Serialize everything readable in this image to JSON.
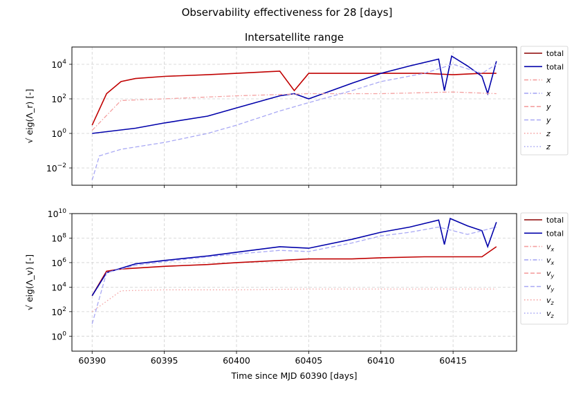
{
  "figure_title": "Observability effectiveness for 28 [days]",
  "chart_data": [
    {
      "type": "line",
      "title": "Intersatellite range",
      "xlabel": "",
      "ylabel_math": "√ eig(Λ_r) [-]",
      "yscale": "log",
      "ylim": [
        0.001,
        100000
      ],
      "xlim": [
        60388.6,
        60419.4
      ],
      "x_ticks": [
        60390,
        60395,
        60400,
        60405,
        60410,
        60415
      ],
      "y_ticks": [
        0.01,
        1,
        100,
        10000
      ],
      "y_tick_labels": [
        {
          "base": "10",
          "exp": "−2"
        },
        {
          "base": "10",
          "exp": "0"
        },
        {
          "base": "10",
          "exp": "2"
        },
        {
          "base": "10",
          "exp": "4"
        }
      ],
      "grid": true,
      "legend_placement": "outside-right",
      "legend": [
        {
          "label": "total",
          "color": "#8b0000",
          "dash": "solid"
        },
        {
          "label": "total",
          "color": "#0000aa",
          "dash": "solid"
        },
        {
          "label": "x",
          "color": "#f4a0a0",
          "dash": "dashdot"
        },
        {
          "label": "x",
          "color": "#a8a8f4",
          "dash": "dashdot"
        },
        {
          "label": "y",
          "color": "#f4a0a0",
          "dash": "dashed"
        },
        {
          "label": "y",
          "color": "#a8a8f4",
          "dash": "dashed"
        },
        {
          "label": "z",
          "color": "#f4a0a0",
          "dash": "dotted"
        },
        {
          "label": "z",
          "color": "#a8a8f4",
          "dash": "dotted"
        }
      ],
      "series": [
        {
          "color": "#c00000",
          "dash": "solid",
          "x": [
            60390,
            60391,
            60392,
            60393,
            60395,
            60398,
            60400,
            60403,
            60404,
            60405,
            60408,
            60410,
            60413,
            60415,
            60417,
            60418
          ],
          "y": [
            3,
            200,
            1000,
            1500,
            2000,
            2500,
            3000,
            4000,
            300,
            3000,
            3000,
            3000,
            3000,
            2500,
            3000,
            3000
          ]
        },
        {
          "color": "#0000aa",
          "dash": "solid",
          "x": [
            60390,
            60393,
            60395,
            60398,
            60400,
            60403,
            60404,
            60405,
            60408,
            60410,
            60412,
            60414,
            60414.4,
            60414.9,
            60416,
            60417,
            60417.4,
            60418
          ],
          "y": [
            1,
            2,
            4,
            10,
            30,
            150,
            200,
            100,
            800,
            3000,
            8000,
            20000,
            300,
            30000,
            8000,
            2000,
            200,
            15000
          ]
        },
        {
          "color": "#f4a0a0",
          "dash": "dashdot",
          "x": [
            60390,
            60392,
            60395,
            60400,
            60405,
            60410,
            60415,
            60418
          ],
          "y": [
            1.5,
            80,
            100,
            150,
            200,
            200,
            250,
            200
          ]
        },
        {
          "color": "#a8a8f4",
          "dash": "dashed",
          "x": [
            60390,
            60390.5,
            60392,
            60395,
            60398,
            60400,
            60403,
            60405,
            60408,
            60410,
            60413,
            60415,
            60417,
            60418
          ],
          "y": [
            0.002,
            0.05,
            0.12,
            0.3,
            1,
            3,
            20,
            60,
            300,
            1000,
            3000,
            10000,
            3000,
            10000
          ]
        }
      ]
    },
    {
      "type": "line",
      "title": "",
      "xlabel": "Time since MJD 60390 [days]",
      "ylabel_math": "√ eig(Λ_v) [-]",
      "yscale": "log",
      "ylim": [
        0.06,
        10000000000
      ],
      "xlim": [
        60388.6,
        60419.4
      ],
      "x_ticks": [
        60390,
        60395,
        60400,
        60405,
        60410,
        60415
      ],
      "x_tick_labels": [
        "60390",
        "60395",
        "60400",
        "60405",
        "60410",
        "60415"
      ],
      "y_ticks": [
        1,
        100,
        10000,
        1000000,
        100000000,
        10000000000
      ],
      "y_tick_labels": [
        {
          "base": "10",
          "exp": "0"
        },
        {
          "base": "10",
          "exp": "2"
        },
        {
          "base": "10",
          "exp": "4"
        },
        {
          "base": "10",
          "exp": "6"
        },
        {
          "base": "10",
          "exp": "8"
        },
        {
          "base": "10",
          "exp": "10"
        }
      ],
      "grid": true,
      "legend_placement": "outside-right",
      "legend": [
        {
          "label": "total",
          "color": "#8b0000",
          "dash": "solid"
        },
        {
          "label": "total",
          "color": "#0000aa",
          "dash": "solid"
        },
        {
          "label": "v",
          "sub": "x",
          "color": "#f4a0a0",
          "dash": "dashdot"
        },
        {
          "label": "v",
          "sub": "x",
          "color": "#a8a8f4",
          "dash": "dashdot"
        },
        {
          "label": "v",
          "sub": "y",
          "color": "#f4a0a0",
          "dash": "dashed"
        },
        {
          "label": "v",
          "sub": "y",
          "color": "#a8a8f4",
          "dash": "dashed"
        },
        {
          "label": "v",
          "sub": "z",
          "color": "#f4a0a0",
          "dash": "dotted"
        },
        {
          "label": "v",
          "sub": "z",
          "color": "#a8a8f4",
          "dash": "dotted"
        }
      ],
      "series": [
        {
          "color": "#c00000",
          "dash": "solid",
          "x": [
            60390,
            60391,
            60392,
            60395,
            60398,
            60400,
            60403,
            60405,
            60408,
            60410,
            60413,
            60415,
            60417,
            60418
          ],
          "y": [
            2000,
            200000,
            300000,
            500000,
            700000,
            1000000,
            1500000,
            2000000,
            2000000,
            2500000,
            3000000,
            3000000,
            3000000,
            20000000
          ]
        },
        {
          "color": "#0000aa",
          "dash": "solid",
          "x": [
            60390,
            60391,
            60393,
            60395,
            60398,
            60400,
            60403,
            60405,
            60408,
            60410,
            60412,
            60414,
            60414.4,
            60414.8,
            60416,
            60417,
            60417.4,
            60418
          ],
          "y": [
            2000,
            150000,
            800000,
            1500000,
            3500000,
            7000000,
            20000000,
            15000000,
            80000000,
            300000000,
            800000000,
            3000000000,
            30000000,
            4000000000,
            1000000000,
            400000000,
            20000000,
            2000000000
          ]
        },
        {
          "color": "#f4a0a0",
          "dash": "dotted",
          "x": [
            60390,
            60392,
            60395,
            60400,
            60405,
            60410,
            60415,
            60418
          ],
          "y": [
            100,
            5000,
            6000,
            6000,
            7000,
            7000,
            7000,
            7000
          ]
        },
        {
          "color": "#a8a8f4",
          "dash": "dashed",
          "x": [
            60390,
            60391,
            60393,
            60395,
            60398,
            60400,
            60403,
            60405,
            60408,
            60410,
            60412,
            60414,
            60416,
            60418
          ],
          "y": [
            10,
            150000,
            600000,
            1200000,
            3000000,
            5000000,
            10000000,
            8000000,
            40000000,
            150000000,
            300000000,
            800000000,
            200000000,
            800000000
          ]
        }
      ]
    }
  ]
}
